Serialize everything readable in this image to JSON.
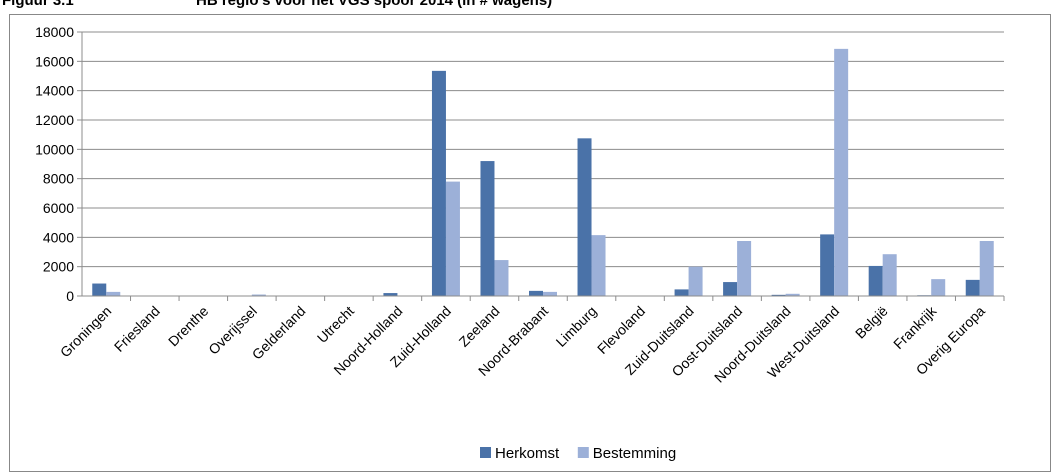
{
  "figure": {
    "number": "Figuur 3.1",
    "title": "HB regio's voor het VGS spoor 2014 (in # wagens)"
  },
  "chart_data": {
    "type": "bar",
    "categories": [
      "Groningen",
      "Friesland",
      "Drenthe",
      "Overijssel",
      "Gelderland",
      "Utrecht",
      "Noord-Holland",
      "Zuid-Holland",
      "Zeeland",
      "Noord-Brabant",
      "Limburg",
      "Flevoland",
      "Zuid-Duitsland",
      "Oost-Duitsland",
      "Noord-Duitsland",
      "West-Duitsland",
      "België",
      "Frankrijk",
      "Overig Europa"
    ],
    "series": [
      {
        "name": "Herkomst",
        "color": "#4a72a8",
        "values": [
          850,
          0,
          0,
          20,
          0,
          0,
          200,
          15350,
          9200,
          350,
          10750,
          0,
          450,
          950,
          80,
          4200,
          2050,
          50,
          1100
        ]
      },
      {
        "name": "Bestemming",
        "color": "#9cb0d8",
        "values": [
          280,
          0,
          0,
          100,
          0,
          0,
          0,
          7800,
          2450,
          280,
          4150,
          0,
          2000,
          3750,
          150,
          16850,
          2850,
          1150,
          3750
        ]
      }
    ],
    "ylim": [
      0,
      18000
    ],
    "yticks": [
      0,
      2000,
      4000,
      6000,
      8000,
      10000,
      12000,
      14000,
      16000,
      18000
    ],
    "grid": true,
    "legend": "bottom"
  }
}
